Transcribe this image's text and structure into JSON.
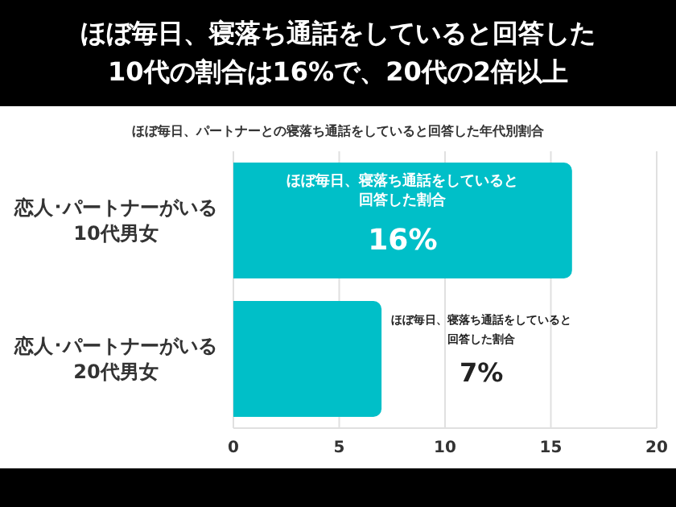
{
  "chart_data": {
    "type": "bar",
    "orientation": "horizontal",
    "title": "ほぼ毎日、寝落ち通話をしていると回答した\n10代の割合は16%で、20代の2倍以上",
    "subtitle": "ほぼ毎日、パートナーとの寝落ち通話をしていると回答した年代別割合",
    "categories": [
      "恋人･パートナーがいる\n10代男女",
      "恋人･パートナーがいる\n20代男女"
    ],
    "values": [
      16,
      7
    ],
    "color": "#00bfc8",
    "value_labels": [
      "16%",
      "7%"
    ],
    "annotations": [
      "ほぼ毎日、寝落ち通話をしていると回答した割合",
      "ほぼ毎日、寝落ち通話をしていると回答した割合"
    ],
    "xlim": [
      0,
      20
    ],
    "xticks": [
      0,
      5,
      10,
      15,
      20
    ],
    "grid": "x"
  }
}
